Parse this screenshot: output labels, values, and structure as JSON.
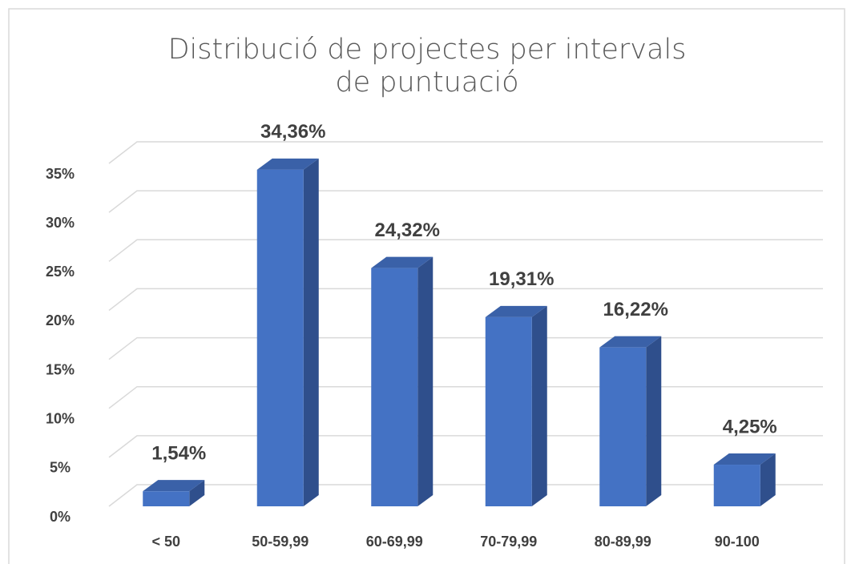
{
  "chart_data": {
    "type": "bar3d",
    "title": "Distribució de projectes per intervals de puntuació",
    "categories": [
      "< 50",
      "50-59,99",
      "60-69,99",
      "70-79,99",
      "80-89,99",
      "90-100"
    ],
    "values": [
      1.54,
      34.36,
      24.32,
      19.31,
      16.22,
      4.25
    ],
    "value_labels": [
      "1,54%",
      "34,36%",
      "24,32%",
      "19,31%",
      "16,22%",
      "4,25%"
    ],
    "color": "#4472c4",
    "ylim": [
      0,
      35
    ],
    "yticks": [
      {
        "value": 0,
        "label": "0%"
      },
      {
        "value": 5,
        "label": "5%"
      },
      {
        "value": 10,
        "label": "10%"
      },
      {
        "value": 15,
        "label": "15%"
      },
      {
        "value": 20,
        "label": "20%"
      },
      {
        "value": 25,
        "label": "25%"
      },
      {
        "value": 30,
        "label": "30%"
      },
      {
        "value": 35,
        "label": "35%"
      }
    ],
    "grid": true
  }
}
